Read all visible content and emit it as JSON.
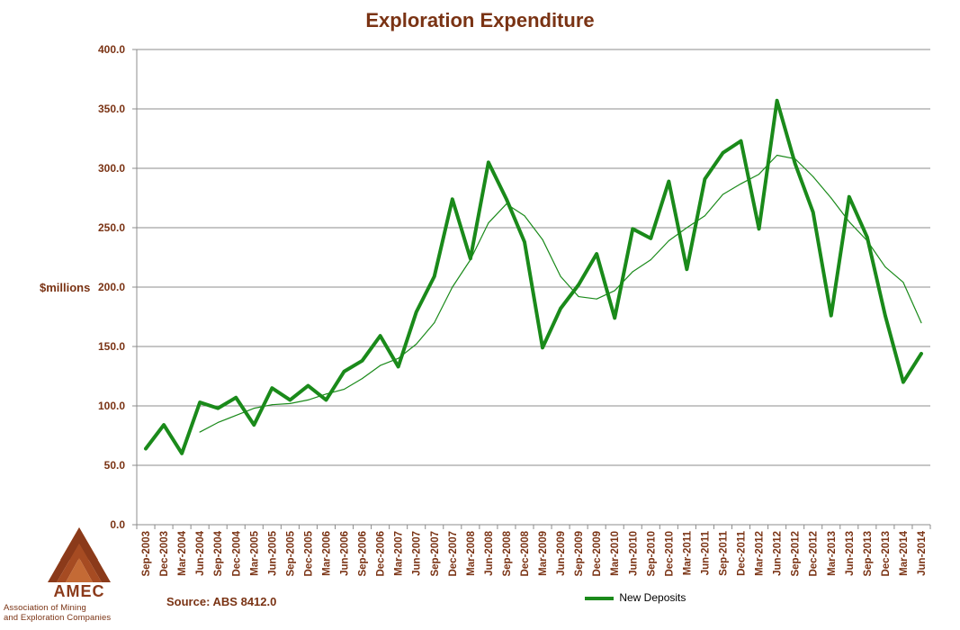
{
  "chart_data": {
    "type": "line",
    "title": "Exploration Expenditure",
    "ylabel": "$millions",
    "xlabel": "",
    "ylim": [
      0,
      400
    ],
    "yticks": [
      "0.0",
      "50.0",
      "100.0",
      "150.0",
      "200.0",
      "250.0",
      "300.0",
      "350.0",
      "400.0"
    ],
    "grid": true,
    "legend_position": "bottom",
    "categories": [
      "Sep-2003",
      "Dec-2003",
      "Mar-2004",
      "Jun-2004",
      "Sep-2004",
      "Dec-2004",
      "Mar-2005",
      "Jun-2005",
      "Sep-2005",
      "Dec-2005",
      "Mar-2006",
      "Jun-2006",
      "Sep-2006",
      "Dec-2006",
      "Mar-2007",
      "Jun-2007",
      "Sep-2007",
      "Dec-2007",
      "Mar-2008",
      "Jun-2008",
      "Sep-2008",
      "Dec-2008",
      "Mar-2009",
      "Jun-2009",
      "Sep-2009",
      "Dec-2009",
      "Mar-2010",
      "Jun-2010",
      "Sep-2010",
      "Dec-2010",
      "Mar-2011",
      "Jun-2011",
      "Sep-2011",
      "Dec-2011",
      "Mar-2012",
      "Jun-2012",
      "Sep-2012",
      "Dec-2012",
      "Mar-2013",
      "Jun-2013",
      "Sep-2013",
      "Dec-2013",
      "Mar-2014",
      "Jun-2014"
    ],
    "series": [
      {
        "name": "New Deposits",
        "color": "#1a8a1a",
        "values": [
          64,
          84,
          60,
          103,
          98,
          107,
          84,
          115,
          105,
          117,
          105,
          129,
          138,
          159,
          133,
          179,
          209,
          274,
          224,
          305,
          274,
          238,
          149,
          182,
          202,
          228,
          174,
          249,
          241,
          289,
          215,
          291,
          313,
          323,
          249,
          357,
          304,
          263,
          176,
          276,
          242,
          176,
          120,
          144
        ]
      },
      {
        "name": "4 per. Mov. Avg. (New Deposits)",
        "color": "#1a8a1a",
        "legend": false,
        "values": [
          null,
          null,
          null,
          78,
          86,
          92,
          98,
          101,
          102,
          105,
          110,
          114,
          123,
          134,
          140,
          152,
          170,
          200,
          223,
          254,
          270,
          260,
          240,
          209,
          192,
          190,
          197,
          213,
          223,
          239,
          250,
          260,
          278,
          287,
          295,
          311,
          308,
          293,
          275,
          255,
          239,
          217,
          204,
          170
        ]
      }
    ]
  },
  "source_text": "Source: ABS 8412.0",
  "logo": {
    "name": "AMEC",
    "line1": "Association of Mining",
    "line2": "and Exploration Companies",
    "color": "#8b3a1a"
  }
}
